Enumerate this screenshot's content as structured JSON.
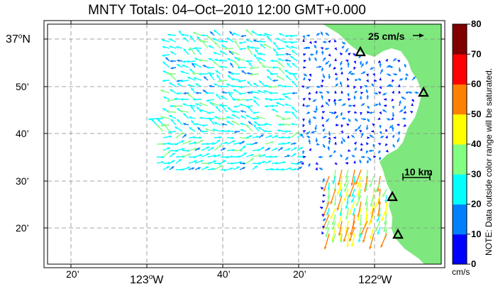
{
  "title": "MNTY Totals: 04–Oct–2010 12:00 GMT+0.000",
  "lat_labels": [
    {
      "deg": "37",
      "sup": "o",
      "hem": "N"
    },
    {
      "text": "50’"
    },
    {
      "text": "40’"
    },
    {
      "text": "30’"
    },
    {
      "text": "20’"
    }
  ],
  "lon_labels": [
    {
      "text": "20’"
    },
    {
      "deg": "123",
      "sup": "o",
      "hem": "W"
    },
    {
      "text": "40’"
    },
    {
      "text": "20’"
    },
    {
      "deg": "122",
      "sup": "o",
      "hem": "W"
    }
  ],
  "scale_vector_label": "25 cm/s",
  "scale_bar_label": "10 km",
  "colorbar": {
    "ticks": [
      "80",
      "70",
      "60",
      "50",
      "40",
      "30",
      "20",
      "10",
      "0"
    ],
    "unit": "cm/s",
    "colors": [
      "#0000ff",
      "#0080ff",
      "#00ffff",
      "#80ff80",
      "#ffff00",
      "#ff8000",
      "#ff0000",
      "#800000"
    ]
  },
  "note": "NOTE: Data outside color range will be saturated.",
  "colors": {
    "land": "#7ee87e",
    "grid": "#888888",
    "site_marker": "#000000"
  }
}
